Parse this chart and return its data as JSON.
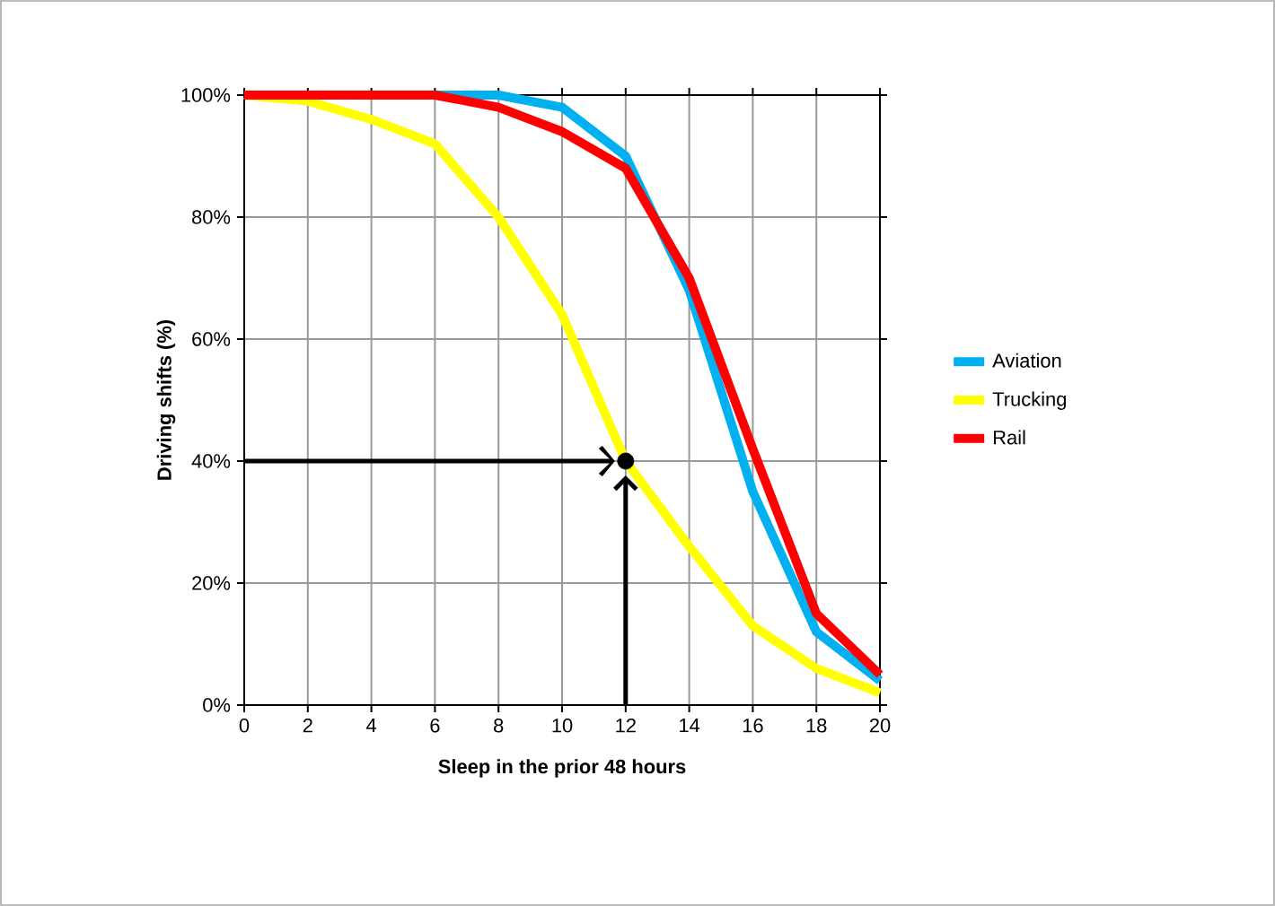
{
  "chart_data": {
    "type": "line",
    "xlabel": "Sleep in the prior 48 hours",
    "ylabel": "Driving shifts (%)",
    "x": [
      0,
      2,
      4,
      6,
      8,
      10,
      12,
      14,
      16,
      18,
      20
    ],
    "series": [
      {
        "name": "Aviation",
        "color": "#00b0f0",
        "values": [
          null,
          null,
          null,
          100,
          100,
          98,
          90,
          68,
          35,
          12,
          4
        ]
      },
      {
        "name": "Trucking",
        "color": "#ffff00",
        "values": [
          100,
          99,
          96,
          92,
          80,
          64,
          40,
          26,
          13,
          6,
          2
        ]
      },
      {
        "name": "Rail",
        "color": "#ff0000",
        "values": [
          100,
          100,
          100,
          100,
          98,
          94,
          88,
          70,
          42,
          15,
          5
        ]
      },
      {
        "type": "scatter",
        "color": "#000000",
        "marker": "circle",
        "x": [
          12
        ],
        "values": [
          40
        ]
      }
    ],
    "xlim": [
      0,
      20
    ],
    "ylim": [
      0,
      100
    ],
    "xticks": [
      0,
      2,
      4,
      6,
      8,
      10,
      12,
      14,
      16,
      18,
      20
    ],
    "yticks": [
      {
        "value": 0,
        "label": "0%"
      },
      {
        "value": 20,
        "label": "20%"
      },
      {
        "value": 40,
        "label": "40%"
      },
      {
        "value": 60,
        "label": "60%"
      },
      {
        "value": 80,
        "label": "80%"
      },
      {
        "value": 100,
        "label": "100%"
      }
    ],
    "grid": true,
    "legend": "right",
    "marker": "none",
    "line_style": "solid"
  }
}
